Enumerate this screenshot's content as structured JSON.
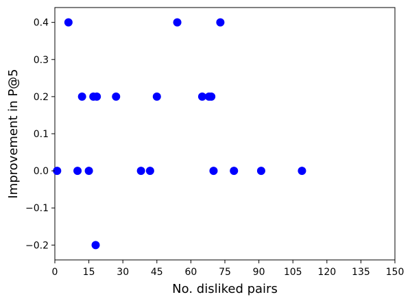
{
  "chart_data": {
    "type": "scatter",
    "title": "",
    "xlabel": "No. disliked pairs",
    "ylabel": "Improvement in P@5",
    "xlim": [
      0,
      150
    ],
    "ylim": [
      -0.24,
      0.44
    ],
    "xticks": [
      0,
      15,
      30,
      45,
      60,
      75,
      90,
      105,
      120,
      135,
      150
    ],
    "yticks": [
      -0.2,
      -0.1,
      0.0,
      0.1,
      0.2,
      0.3,
      0.4
    ],
    "xtick_labels": [
      "0",
      "15",
      "30",
      "45",
      "60",
      "75",
      "90",
      "105",
      "120",
      "135",
      "150"
    ],
    "ytick_labels": [
      "−0.2",
      "−0.1",
      "0.0",
      "0.1",
      "0.2",
      "0.3",
      "0.4"
    ],
    "grid": false,
    "legend": "none",
    "marker_color": "#0000ff",
    "points": [
      {
        "x": 1,
        "y": 0.0
      },
      {
        "x": 6,
        "y": 0.4
      },
      {
        "x": 10,
        "y": 0.0
      },
      {
        "x": 12,
        "y": 0.2
      },
      {
        "x": 15,
        "y": 0.0
      },
      {
        "x": 17,
        "y": 0.2
      },
      {
        "x": 18,
        "y": -0.2
      },
      {
        "x": 18.5,
        "y": 0.2
      },
      {
        "x": 27,
        "y": 0.2
      },
      {
        "x": 38,
        "y": 0.0
      },
      {
        "x": 42,
        "y": 0.0
      },
      {
        "x": 45,
        "y": 0.2
      },
      {
        "x": 54,
        "y": 0.4
      },
      {
        "x": 65,
        "y": 0.2
      },
      {
        "x": 68,
        "y": 0.2
      },
      {
        "x": 69,
        "y": 0.2
      },
      {
        "x": 70,
        "y": 0.0
      },
      {
        "x": 73,
        "y": 0.4
      },
      {
        "x": 79,
        "y": 0.0
      },
      {
        "x": 91,
        "y": 0.0
      },
      {
        "x": 109,
        "y": 0.0
      }
    ]
  }
}
